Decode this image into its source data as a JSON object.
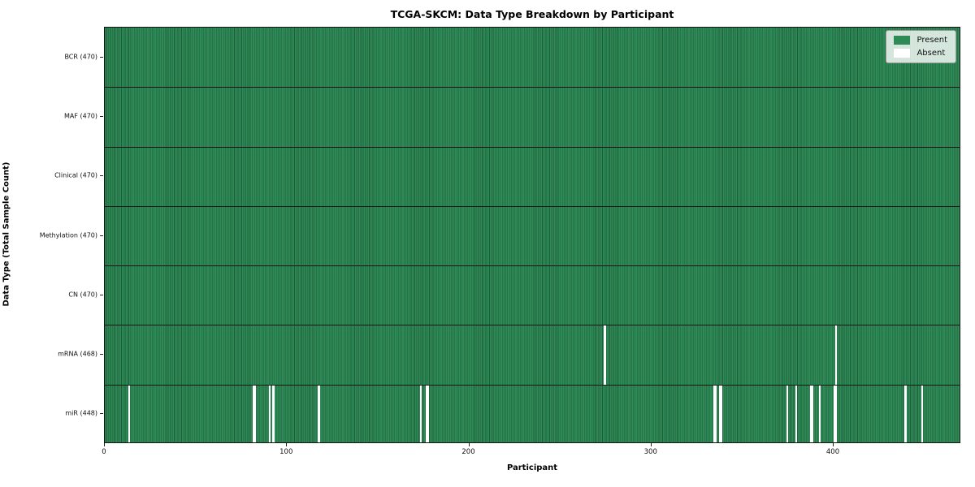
{
  "chart_data": {
    "type": "heatmap",
    "title": "TCGA-SKCM: Data Type Breakdown by Participant",
    "xlabel": "Participant",
    "ylabel": "Data Type (Total Sample Count)",
    "n_participants": 470,
    "x_ticks": [
      0,
      100,
      200,
      300,
      400
    ],
    "rows": [
      {
        "label": "BCR (470)",
        "data_type": "BCR",
        "present_count": 470,
        "absent_participants": []
      },
      {
        "label": "MAF (470)",
        "data_type": "MAF",
        "present_count": 470,
        "absent_participants": []
      },
      {
        "label": "Clinical (470)",
        "data_type": "Clinical",
        "present_count": 470,
        "absent_participants": []
      },
      {
        "label": "Methylation (470)",
        "data_type": "Methylation",
        "present_count": 470,
        "absent_participants": []
      },
      {
        "label": "CN (470)",
        "data_type": "CN",
        "present_count": 470,
        "absent_participants": []
      },
      {
        "label": "mRNA (468)",
        "data_type": "mRNA",
        "present_count": 468,
        "absent_participants": [
          274,
          401
        ]
      },
      {
        "label": "miR (448)",
        "data_type": "miR",
        "present_count": 448,
        "absent_participants": [
          13,
          81,
          82,
          90,
          92,
          117,
          173,
          176,
          177,
          334,
          335,
          337,
          338,
          374,
          379,
          387,
          388,
          392,
          400,
          401,
          439,
          448
        ]
      }
    ],
    "legend": {
      "position": "upper right",
      "entries": [
        {
          "label": "Present",
          "color": "#2e8b57"
        },
        {
          "label": "Absent",
          "color": "#ffffff"
        }
      ]
    },
    "colors": {
      "present_fill": "#2e8b57",
      "present_edge": "#1e5e3a",
      "absent_fill": "#ffffff",
      "row_separator": "#161616"
    }
  }
}
